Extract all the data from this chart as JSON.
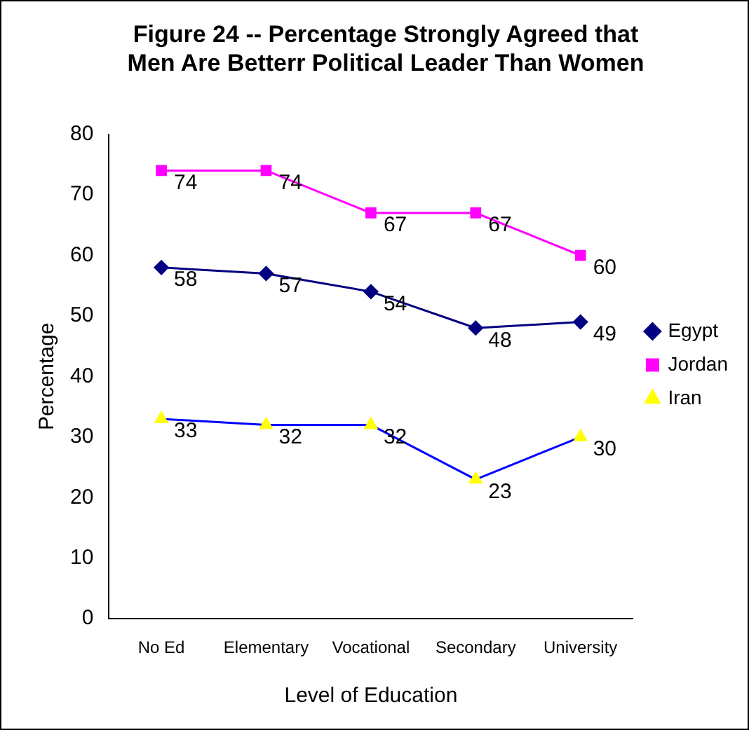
{
  "chart_data": {
    "type": "line",
    "title": "Figure 24 -- Percentage Strongly Agreed that Men Are Betterr Political Leader Than Women",
    "xlabel": "Level of Education",
    "ylabel": "Percentage",
    "categories": [
      "No Ed",
      "Elementary",
      "Vocational",
      "Secondary",
      "University"
    ],
    "series": [
      {
        "name": "Egypt",
        "color": "#000080",
        "marker": "diamond",
        "values": [
          58,
          57,
          54,
          48,
          49
        ]
      },
      {
        "name": "Jordan",
        "color": "#ff00ff",
        "marker": "square",
        "values": [
          74,
          74,
          67,
          67,
          60
        ]
      },
      {
        "name": "Iran",
        "color": "#0000ff",
        "marker": "triangle",
        "colors": [
          "#ffff00",
          "#ffff00",
          "#ffff00",
          "#ffff00",
          "#ffff00"
        ],
        "values": [
          33,
          32,
          32,
          23,
          30
        ]
      }
    ],
    "ylim": [
      0,
      80
    ],
    "yticks": [
      0,
      10,
      20,
      30,
      40,
      50,
      60,
      70,
      80
    ],
    "grid": false,
    "legend": "right",
    "data_labels": true,
    "line_style": "solid"
  }
}
